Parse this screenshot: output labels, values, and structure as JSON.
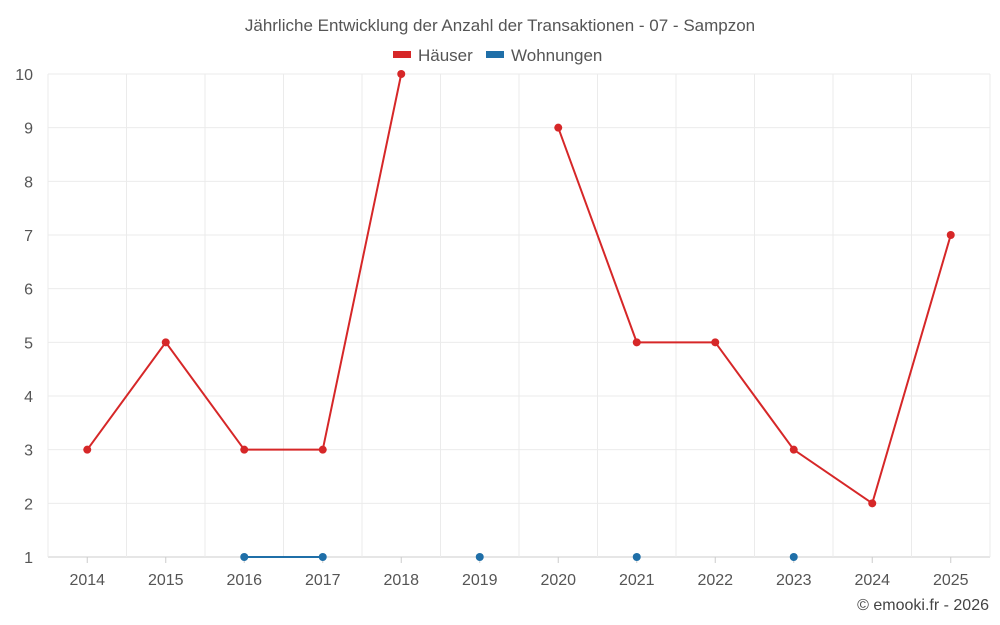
{
  "chart_data": {
    "type": "line",
    "title": "Jährliche Entwicklung der Anzahl der Transaktionen - 07 - Sampzon",
    "xlabel": "",
    "ylabel": "",
    "categories": [
      "2014",
      "2015",
      "2016",
      "2017",
      "2018",
      "2019",
      "2020",
      "2021",
      "2022",
      "2023",
      "2024",
      "2025"
    ],
    "ylim": [
      1,
      10
    ],
    "yticks": [
      "1",
      "2",
      "3",
      "4",
      "5",
      "6",
      "7",
      "8",
      "9",
      "10"
    ],
    "grid": true,
    "legend_position": "top-center",
    "series": [
      {
        "name": "Häuser",
        "color": "#d62728",
        "values": [
          3,
          5,
          3,
          3,
          10,
          null,
          9,
          5,
          5,
          3,
          2,
          7
        ]
      },
      {
        "name": "Wohnungen",
        "color": "#1f6fa8",
        "values": [
          null,
          null,
          1,
          1,
          null,
          1,
          null,
          1,
          null,
          1,
          null,
          null
        ]
      }
    ]
  },
  "credit": "© emooki.fr - 2026"
}
